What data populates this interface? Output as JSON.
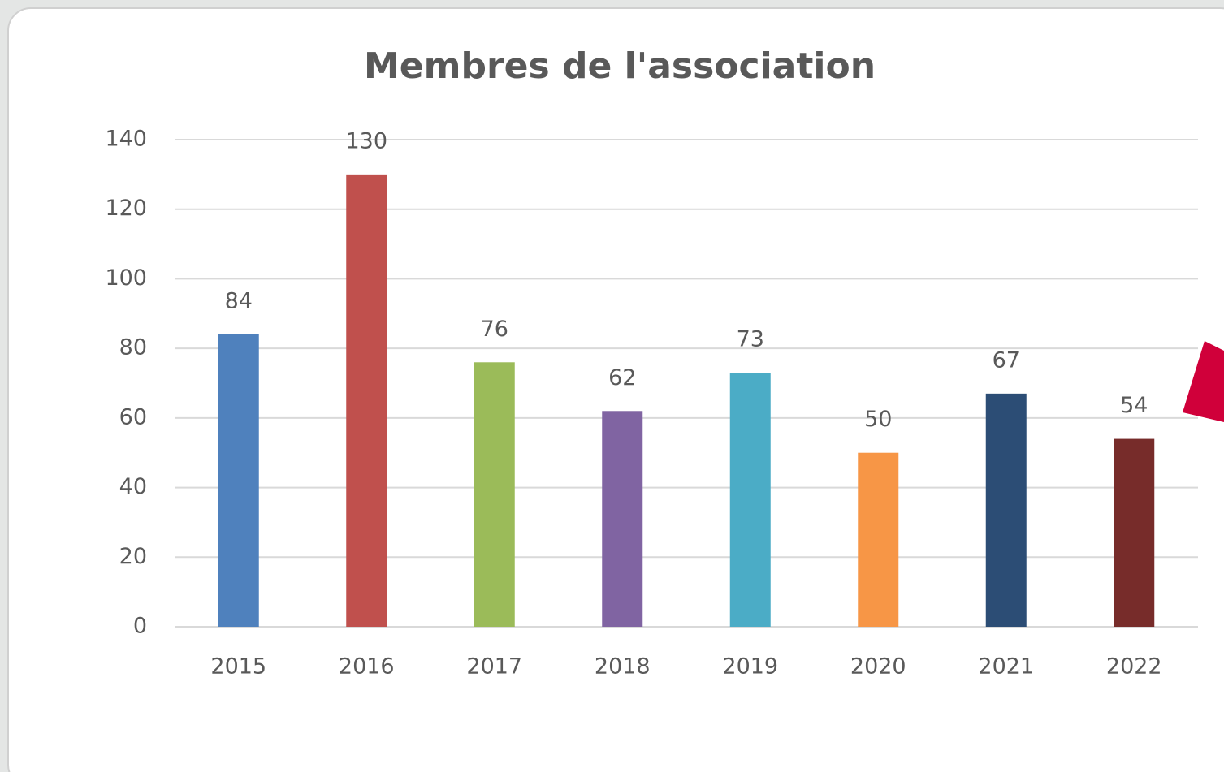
{
  "chart_data": {
    "type": "bar",
    "title": "Membres de l'association",
    "categories": [
      "2015",
      "2016",
      "2017",
      "2018",
      "2019",
      "2020",
      "2021",
      "2022"
    ],
    "values": [
      84,
      130,
      76,
      62,
      73,
      50,
      67,
      54
    ],
    "colors": [
      "#4f81bd",
      "#c0504d",
      "#9bbb59",
      "#8064a2",
      "#4bacc6",
      "#f79646",
      "#2c4d75",
      "#772c2a"
    ],
    "ylim": [
      0,
      140
    ],
    "yticks": [
      0,
      20,
      40,
      60,
      80,
      100,
      120,
      140
    ],
    "grid": true
  }
}
